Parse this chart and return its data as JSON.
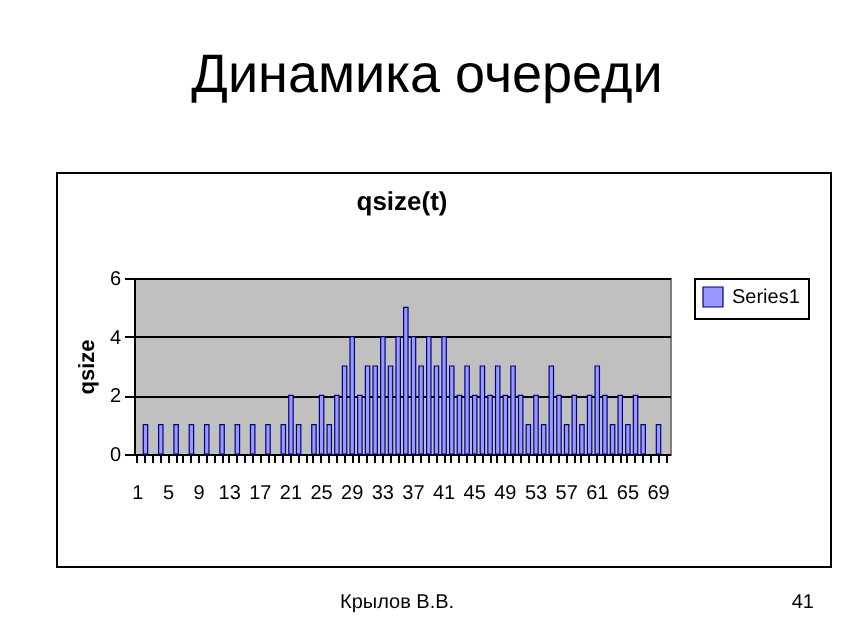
{
  "chart_data": {
    "type": "bar",
    "title": "qsize(t)",
    "subtitle": "Динамика очереди",
    "ylabel": "qsize",
    "categories": [
      "1",
      null,
      null,
      null,
      "5",
      null,
      null,
      null,
      "9",
      null,
      null,
      null,
      "13",
      null,
      null,
      null,
      "17",
      null,
      null,
      null,
      "21",
      null,
      null,
      null,
      "25",
      null,
      null,
      null,
      "29",
      null,
      null,
      null,
      "33",
      null,
      null,
      null,
      "37",
      null,
      null,
      null,
      "41",
      null,
      null,
      null,
      "45",
      null,
      null,
      null,
      "49",
      null,
      null,
      null,
      "53",
      null,
      null,
      null,
      "57",
      null,
      null,
      null,
      "61",
      null,
      null,
      null,
      "65",
      null,
      null,
      null,
      "69",
      null
    ],
    "series": [
      {
        "name": "Series1",
        "color": "#9999ff",
        "values": [
          0,
          1,
          0,
          1,
          0,
          1,
          0,
          1,
          0,
          1,
          0,
          1,
          0,
          1,
          0,
          1,
          0,
          1,
          0,
          1,
          2,
          1,
          0,
          1,
          2,
          1,
          2,
          3,
          4,
          2,
          3,
          3,
          4,
          3,
          4,
          5,
          4,
          3,
          4,
          3,
          4,
          3,
          2,
          3,
          2,
          3,
          2,
          3,
          2,
          3,
          2,
          1,
          2,
          1,
          3,
          2,
          1,
          2,
          1,
          2,
          3,
          2,
          1,
          2,
          1,
          2,
          1,
          0,
          1,
          0
        ]
      }
    ],
    "ylim": [
      0,
      6
    ],
    "yticks": [
      0,
      2,
      4,
      6
    ],
    "grid": "y",
    "legend": "right",
    "annotations": [
      "Крылов В.В.",
      "41"
    ]
  }
}
